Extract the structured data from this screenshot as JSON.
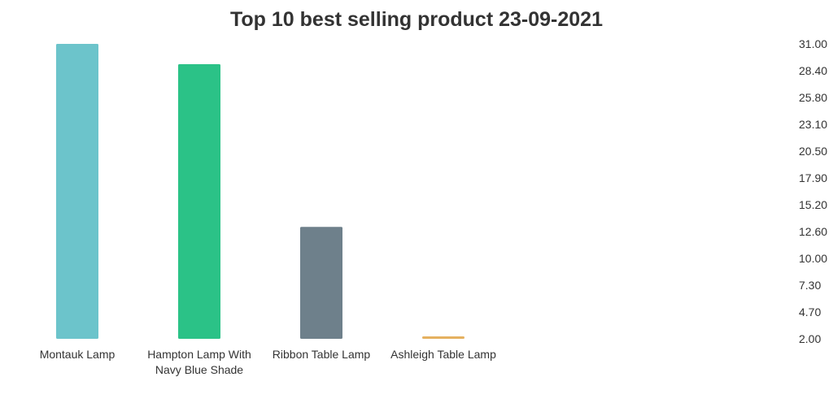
{
  "chart_data": {
    "type": "bar",
    "title": "Top 10 best selling product   23-09-2021",
    "xlabel": "",
    "ylabel": "",
    "categories": [
      [
        "Montauk Lamp"
      ],
      [
        "Hampton Lamp With",
        "Navy Blue Shade"
      ],
      [
        "Ribbon Table Lamp"
      ],
      [
        "Ashleigh Table Lamp"
      ]
    ],
    "values": [
      31,
      29,
      13,
      2
    ],
    "colors": [
      "#6cc4cb",
      "#2bc287",
      "#6e808b",
      "#e5b160"
    ],
    "ylim": [
      2,
      31
    ],
    "yticks": [
      "31.00",
      "28.40",
      "25.80",
      "23.10",
      "20.50",
      "17.90",
      "15.20",
      "12.60",
      "10.00",
      "7.30",
      "4.70",
      "2.00"
    ],
    "y_axis_side": "right",
    "grid": false,
    "legend": "none"
  }
}
